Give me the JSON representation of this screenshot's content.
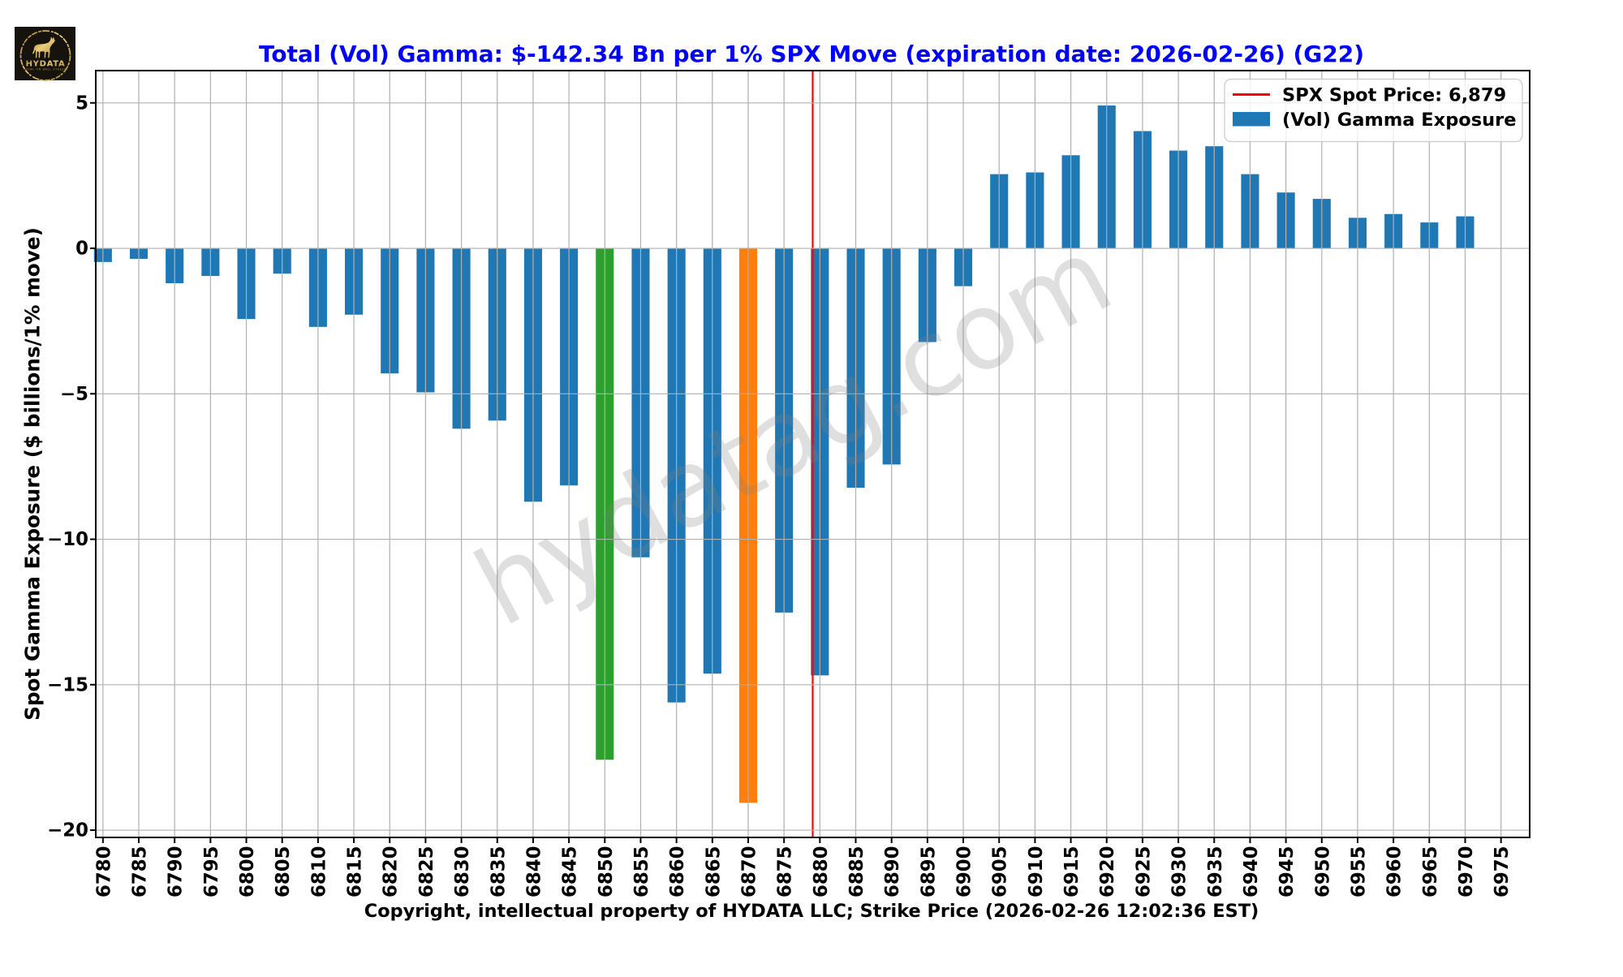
{
  "watermark": "hydatag.com",
  "logo": {
    "brand": "HYDATA",
    "tagline": "HOWL ON WALL STREET",
    "bg_color": "#16120d",
    "gold_color": "#c59d45"
  },
  "legend": {
    "items": [
      {
        "type": "line",
        "color": "#ff0000",
        "label": "SPX Spot Price: 6,879"
      },
      {
        "type": "patch",
        "color": "#1f77b4",
        "label": "(Vol) Gamma Exposure"
      }
    ]
  },
  "chart_data": {
    "type": "bar",
    "title": "Total (Vol) Gamma: $-142.34 Bn per 1% SPX Move (expiration date: 2026-02-26) (G22)",
    "title_color": "#0000ff",
    "xlabel": "Copyright, intellectual property of HYDATA LLC; Strike Price (2026-02-26 12:02:36 EST)",
    "ylabel": "Spot Gamma Exposure ($ billions/1% move)",
    "categories": [
      6780,
      6785,
      6790,
      6795,
      6800,
      6805,
      6810,
      6815,
      6820,
      6825,
      6830,
      6835,
      6840,
      6845,
      6850,
      6855,
      6860,
      6865,
      6870,
      6875,
      6880,
      6885,
      6890,
      6895,
      6900,
      6905,
      6910,
      6915,
      6920,
      6925,
      6930,
      6935,
      6940,
      6945,
      6950,
      6955,
      6960,
      6965,
      6970,
      6975
    ],
    "values": [
      -0.47,
      -0.36,
      -1.2,
      -0.95,
      -2.43,
      -0.87,
      -2.7,
      -2.28,
      -4.3,
      -4.95,
      -6.2,
      -5.92,
      -8.71,
      -8.15,
      -17.58,
      -10.62,
      -15.61,
      -14.62,
      -19.06,
      -12.52,
      -14.68,
      -8.23,
      -7.43,
      -3.22,
      -1.3,
      2.55,
      2.61,
      3.2,
      4.91,
      4.03,
      3.36,
      3.51,
      2.55,
      1.92,
      1.7,
      1.05,
      1.18,
      0.89,
      1.1,
      0.0
    ],
    "default_bar_color": "#1f77b4",
    "bar_colors": {
      "6850": "#2ca02c",
      "6870": "#ff7f0e"
    },
    "spot_price": 6879,
    "spot_line_color": "#ff0000",
    "grid": true,
    "grid_color": "#b0b0b0",
    "legend_position": "upper right",
    "xlim": [
      6779,
      6979
    ],
    "ylim": [
      -20.25,
      6.11
    ],
    "yticks": [
      5,
      0,
      -5,
      -10,
      -15,
      -20
    ],
    "bar_width_strike_units": 2.5
  }
}
